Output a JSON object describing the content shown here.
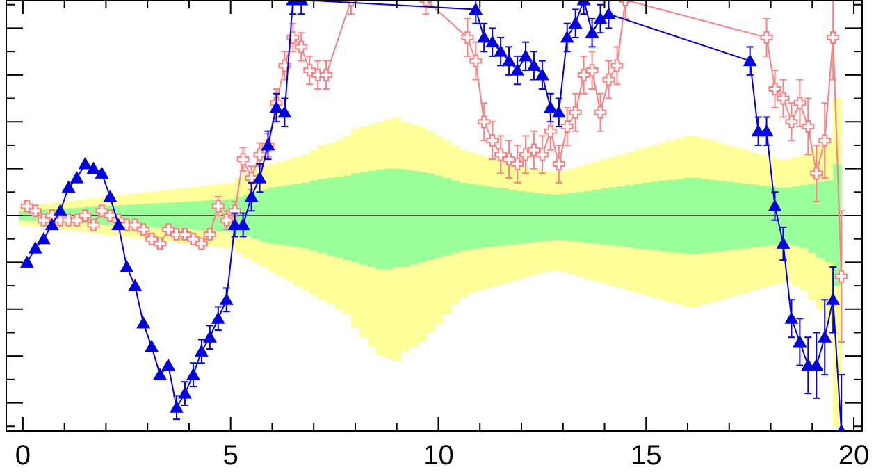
{
  "chart_data": {
    "type": "scatter",
    "title": "",
    "xlabel": "",
    "ylabel": "",
    "xlim": [
      -0.4,
      20.2
    ],
    "ylim": [
      -4.6,
      4.6
    ],
    "x_tick_labels": [
      "0",
      "5",
      "10",
      "15",
      "20"
    ],
    "x_tick_values": [
      0,
      5,
      10,
      15,
      20
    ],
    "reference_line_y": 0,
    "colors": {
      "band_outer": "#ffff99",
      "band_inner": "#99ff99",
      "series_triangle": "#0000e0",
      "series_cross": "#ff8080",
      "axis": "#000000"
    },
    "band": {
      "x": [
        0,
        0.2,
        0.4,
        0.6,
        0.8,
        1,
        1.2,
        1.4,
        1.6,
        1.8,
        2,
        2.2,
        2.4,
        2.6,
        2.8,
        3,
        3.2,
        3.4,
        3.6,
        3.8,
        4,
        4.2,
        4.4,
        4.6,
        4.8,
        5,
        5.2,
        5.4,
        5.6,
        5.8,
        6,
        6.2,
        6.4,
        6.6,
        6.8,
        7,
        7.2,
        7.4,
        7.6,
        7.8,
        8,
        8.2,
        8.4,
        8.6,
        8.8,
        9,
        9.2,
        9.4,
        9.6,
        9.8,
        10,
        10.2,
        10.4,
        10.6,
        10.8,
        11,
        11.2,
        11.4,
        11.6,
        11.8,
        12,
        12.2,
        12.4,
        12.6,
        12.8,
        13,
        13.2,
        13.4,
        13.6,
        13.8,
        14,
        14.2,
        14.4,
        14.6,
        14.8,
        15,
        15.2,
        15.4,
        15.6,
        15.8,
        16,
        16.2,
        16.4,
        16.6,
        16.8,
        17,
        17.2,
        17.4,
        17.6,
        17.8,
        18,
        18.2,
        18.4,
        18.6,
        18.8,
        19,
        19.2,
        19.4,
        19.6
      ],
      "inner_up": [
        0.1,
        0.11,
        0.12,
        0.13,
        0.14,
        0.15,
        0.16,
        0.17,
        0.18,
        0.19,
        0.2,
        0.21,
        0.22,
        0.23,
        0.24,
        0.25,
        0.26,
        0.27,
        0.28,
        0.29,
        0.3,
        0.31,
        0.32,
        0.33,
        0.34,
        0.35,
        0.4,
        0.45,
        0.5,
        0.55,
        0.6,
        0.62,
        0.65,
        0.68,
        0.7,
        0.75,
        0.78,
        0.8,
        0.82,
        0.85,
        0.9,
        0.92,
        0.95,
        0.98,
        1.0,
        1.0,
        0.98,
        0.95,
        0.92,
        0.9,
        0.85,
        0.8,
        0.75,
        0.7,
        0.68,
        0.65,
        0.62,
        0.6,
        0.58,
        0.55,
        0.52,
        0.5,
        0.48,
        0.46,
        0.45,
        0.46,
        0.48,
        0.5,
        0.52,
        0.55,
        0.58,
        0.6,
        0.62,
        0.65,
        0.68,
        0.7,
        0.72,
        0.74,
        0.76,
        0.78,
        0.8,
        0.8,
        0.78,
        0.76,
        0.74,
        0.72,
        0.7,
        0.68,
        0.66,
        0.64,
        0.62,
        0.6,
        0.6,
        0.62,
        0.65,
        0.68,
        0.72,
        0.75,
        1.1
      ],
      "inner_lo": [
        0.1,
        0.11,
        0.12,
        0.13,
        0.14,
        0.15,
        0.16,
        0.17,
        0.18,
        0.19,
        0.2,
        0.21,
        0.22,
        0.23,
        0.24,
        0.25,
        0.26,
        0.27,
        0.28,
        0.29,
        0.3,
        0.31,
        0.32,
        0.33,
        0.34,
        0.35,
        0.4,
        0.45,
        0.5,
        0.55,
        0.6,
        0.62,
        0.65,
        0.68,
        0.7,
        0.75,
        0.8,
        0.85,
        0.9,
        0.95,
        1.0,
        1.05,
        1.1,
        1.15,
        1.15,
        1.1,
        1.1,
        1.05,
        1.0,
        0.95,
        0.9,
        0.85,
        0.8,
        0.75,
        0.72,
        0.7,
        0.68,
        0.66,
        0.64,
        0.62,
        0.6,
        0.58,
        0.56,
        0.54,
        0.52,
        0.52,
        0.54,
        0.56,
        0.58,
        0.6,
        0.62,
        0.64,
        0.66,
        0.68,
        0.7,
        0.72,
        0.74,
        0.76,
        0.78,
        0.8,
        0.82,
        0.82,
        0.8,
        0.78,
        0.76,
        0.74,
        0.72,
        0.7,
        0.68,
        0.66,
        0.64,
        0.62,
        0.6,
        0.65,
        0.7,
        0.8,
        0.9,
        1.0,
        1.5
      ],
      "outer_up": [
        0.2,
        0.22,
        0.24,
        0.26,
        0.28,
        0.3,
        0.32,
        0.34,
        0.36,
        0.38,
        0.4,
        0.42,
        0.44,
        0.46,
        0.48,
        0.5,
        0.52,
        0.54,
        0.56,
        0.58,
        0.6,
        0.62,
        0.64,
        0.66,
        0.68,
        0.7,
        0.8,
        0.9,
        1.0,
        1.05,
        1.1,
        1.15,
        1.2,
        1.25,
        1.3,
        1.4,
        1.5,
        1.55,
        1.6,
        1.7,
        1.85,
        1.9,
        1.95,
        2.0,
        2.05,
        2.1,
        2.0,
        1.95,
        1.9,
        1.8,
        1.7,
        1.6,
        1.5,
        1.4,
        1.35,
        1.3,
        1.25,
        1.2,
        1.15,
        1.1,
        1.05,
        1.0,
        0.98,
        0.95,
        0.92,
        0.95,
        1.0,
        1.05,
        1.1,
        1.15,
        1.2,
        1.25,
        1.3,
        1.35,
        1.4,
        1.45,
        1.5,
        1.55,
        1.6,
        1.65,
        1.7,
        1.7,
        1.65,
        1.6,
        1.55,
        1.5,
        1.45,
        1.4,
        1.35,
        1.3,
        1.25,
        1.2,
        1.2,
        1.25,
        1.3,
        1.4,
        1.5,
        1.6,
        2.5
      ],
      "outer_lo": [
        0.2,
        0.22,
        0.24,
        0.26,
        0.28,
        0.3,
        0.32,
        0.34,
        0.36,
        0.38,
        0.4,
        0.42,
        0.44,
        0.46,
        0.48,
        0.5,
        0.52,
        0.54,
        0.56,
        0.58,
        0.6,
        0.62,
        0.64,
        0.66,
        0.68,
        0.7,
        0.8,
        0.9,
        1.0,
        1.1,
        1.2,
        1.3,
        1.4,
        1.5,
        1.6,
        1.7,
        1.8,
        1.9,
        2.0,
        2.1,
        2.4,
        2.6,
        2.8,
        3.0,
        3.05,
        3.1,
        2.9,
        2.8,
        2.7,
        2.5,
        2.3,
        2.1,
        1.9,
        1.75,
        1.65,
        1.6,
        1.55,
        1.5,
        1.45,
        1.4,
        1.35,
        1.3,
        1.25,
        1.2,
        1.18,
        1.2,
        1.25,
        1.3,
        1.35,
        1.4,
        1.45,
        1.5,
        1.55,
        1.6,
        1.65,
        1.7,
        1.75,
        1.8,
        1.85,
        1.9,
        1.95,
        1.95,
        1.9,
        1.85,
        1.8,
        1.75,
        1.7,
        1.65,
        1.6,
        1.55,
        1.5,
        1.45,
        1.4,
        1.5,
        1.6,
        1.8,
        2.0,
        2.3,
        4.5
      ]
    },
    "series": [
      {
        "marker": "triangle",
        "color": "#0000e0",
        "x": [
          0.1,
          0.3,
          0.5,
          0.7,
          0.9,
          1.1,
          1.3,
          1.5,
          1.7,
          1.9,
          2.1,
          2.3,
          2.5,
          2.7,
          2.9,
          3.1,
          3.3,
          3.5,
          3.7,
          3.9,
          4.1,
          4.3,
          4.5,
          4.7,
          4.9,
          5.1,
          5.3,
          5.5,
          5.7,
          5.9,
          6.1,
          6.3,
          6.5,
          6.7,
          10.9,
          11.1,
          11.3,
          11.5,
          11.7,
          11.9,
          12.1,
          12.3,
          12.5,
          12.7,
          12.9,
          13.1,
          13.3,
          13.5,
          13.7,
          13.9,
          14.1,
          17.5,
          17.7,
          17.9,
          18.1,
          18.3,
          18.5,
          18.7,
          18.9,
          19.1,
          19.3,
          19.5,
          19.7
        ],
        "y": [
          -1.0,
          -0.7,
          -0.5,
          -0.2,
          0.1,
          0.6,
          0.8,
          1.1,
          1.0,
          0.9,
          0.4,
          -0.2,
          -1.1,
          -1.5,
          -2.3,
          -2.8,
          -3.4,
          -3.2,
          -4.1,
          -3.8,
          -3.4,
          -2.9,
          -2.6,
          -2.2,
          -1.8,
          -0.2,
          -0.2,
          0.4,
          0.8,
          1.5,
          2.3,
          2.2,
          4.6,
          4.6,
          4.4,
          3.8,
          3.7,
          3.5,
          3.3,
          3.1,
          3.4,
          3.2,
          3.0,
          2.3,
          2.2,
          3.8,
          4.1,
          4.6,
          3.9,
          4.2,
          4.3,
          3.3,
          1.8,
          1.8,
          0.2,
          -0.6,
          -2.2,
          -2.7,
          -3.2,
          -3.2,
          -2.6,
          -1.8,
          -4.6
        ],
        "err": [
          0.0,
          0.0,
          0.0,
          0.0,
          0.0,
          0.0,
          0.0,
          0.0,
          0.0,
          0.0,
          0.0,
          0.0,
          0.0,
          0.0,
          0.0,
          0.0,
          0.0,
          0.0,
          0.25,
          0.25,
          0.25,
          0.25,
          0.25,
          0.25,
          0.25,
          0.25,
          0.25,
          0.3,
          0.3,
          0.3,
          0.3,
          0.3,
          0.3,
          0.3,
          0.3,
          0.3,
          0.3,
          0.3,
          0.3,
          0.3,
          0.3,
          0.3,
          0.3,
          0.3,
          0.3,
          0.3,
          0.3,
          0.3,
          0.3,
          0.3,
          0.3,
          0.3,
          0.3,
          0.3,
          0.3,
          0.35,
          0.4,
          0.5,
          0.6,
          0.7,
          0.8,
          0.7,
          1.2
        ]
      },
      {
        "marker": "open-cross",
        "color": "#ff8080",
        "x": [
          0.1,
          0.3,
          0.5,
          0.7,
          0.9,
          1.1,
          1.3,
          1.5,
          1.7,
          1.9,
          2.1,
          2.3,
          2.5,
          2.7,
          2.9,
          3.1,
          3.3,
          3.5,
          3.7,
          3.9,
          4.1,
          4.3,
          4.5,
          4.7,
          4.9,
          5.1,
          5.3,
          5.5,
          5.7,
          5.9,
          6.1,
          6.3,
          6.5,
          6.7,
          6.9,
          7.1,
          7.3,
          7.9,
          9.7,
          10.7,
          10.9,
          11.1,
          11.3,
          11.5,
          11.7,
          11.9,
          12.1,
          12.3,
          12.5,
          12.7,
          12.9,
          13.1,
          13.3,
          13.5,
          13.7,
          13.9,
          14.1,
          14.3,
          14.5,
          17.9,
          18.1,
          18.3,
          18.5,
          18.7,
          18.9,
          19.1,
          19.3,
          19.5,
          19.7
        ],
        "y": [
          0.2,
          0.1,
          -0.1,
          0.0,
          -0.1,
          -0.1,
          -0.1,
          0.0,
          -0.2,
          0.1,
          0.0,
          -0.1,
          -0.2,
          -0.2,
          -0.3,
          -0.5,
          -0.6,
          -0.3,
          -0.4,
          -0.4,
          -0.5,
          -0.6,
          -0.4,
          0.2,
          -0.1,
          0.1,
          1.2,
          0.8,
          1.3,
          1.5,
          2.4,
          3.2,
          3.8,
          3.6,
          3.1,
          3.0,
          3.0,
          4.6,
          4.6,
          3.8,
          3.3,
          2.0,
          1.6,
          1.3,
          1.2,
          1.1,
          1.3,
          1.4,
          1.3,
          1.8,
          1.1,
          1.9,
          2.2,
          3.0,
          3.1,
          2.2,
          2.9,
          3.2,
          4.6,
          3.8,
          2.7,
          2.5,
          2.0,
          2.4,
          1.9,
          0.9,
          1.6,
          3.8,
          -1.3
        ],
        "err": [
          0.1,
          0.1,
          0.1,
          0.1,
          0.1,
          0.1,
          0.1,
          0.1,
          0.1,
          0.1,
          0.1,
          0.1,
          0.1,
          0.1,
          0.1,
          0.1,
          0.1,
          0.1,
          0.1,
          0.1,
          0.1,
          0.1,
          0.1,
          0.2,
          0.2,
          0.2,
          0.25,
          0.25,
          0.25,
          0.25,
          0.3,
          0.3,
          0.3,
          0.3,
          0.3,
          0.3,
          0.3,
          0.3,
          0.3,
          0.4,
          0.4,
          0.4,
          0.4,
          0.4,
          0.4,
          0.4,
          0.4,
          0.4,
          0.4,
          0.4,
          0.4,
          0.4,
          0.4,
          0.4,
          0.4,
          0.4,
          0.4,
          0.4,
          0.4,
          0.4,
          0.4,
          0.4,
          0.4,
          0.5,
          0.6,
          0.6,
          0.8,
          0.9,
          1.4
        ]
      }
    ]
  }
}
